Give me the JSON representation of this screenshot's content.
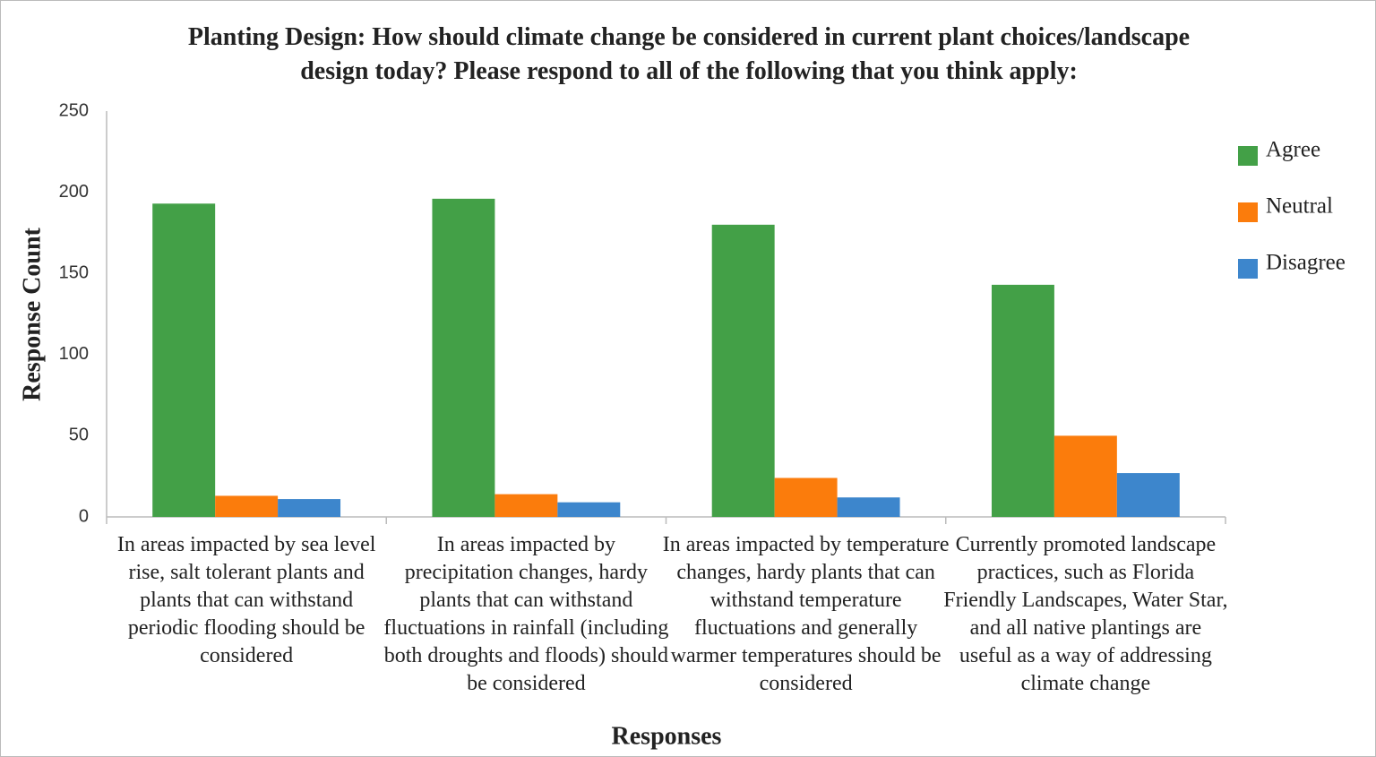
{
  "chart_data": {
    "type": "bar",
    "title": "Planting Design: How should climate change be considered in current plant choices/landscape design today? Please respond to all of the following that you think apply:",
    "x_label": "Responses",
    "y_label": "Response Count",
    "categories": [
      "In areas impacted by sea level rise, salt tolerant plants and plants that can withstand periodic flooding should be considered",
      "In areas impacted by precipitation changes, hardy plants that can withstand fluctuations in rainfall (including both droughts and floods) should be considered",
      "In areas impacted by temperature changes, hardy plants that can withstand temperature fluctuations and generally warmer temperatures should be considered",
      "Currently promoted landscape practices, such as Florida Friendly Landscapes, Water Star, and all native plantings are useful as a way of addressing climate change"
    ],
    "series": [
      {
        "name": "Agree",
        "color": "#43a047",
        "values": [
          193,
          196,
          180,
          143
        ]
      },
      {
        "name": "Neutral",
        "color": "#fb7c0c",
        "values": [
          13,
          14,
          24,
          50
        ]
      },
      {
        "name": "Disagree",
        "color": "#3d86cc",
        "values": [
          11,
          9,
          12,
          27
        ]
      }
    ],
    "ylim": [
      0,
      250
    ],
    "yticks": [
      0,
      50,
      100,
      150,
      200,
      250
    ],
    "grid": false,
    "legend": "right"
  }
}
